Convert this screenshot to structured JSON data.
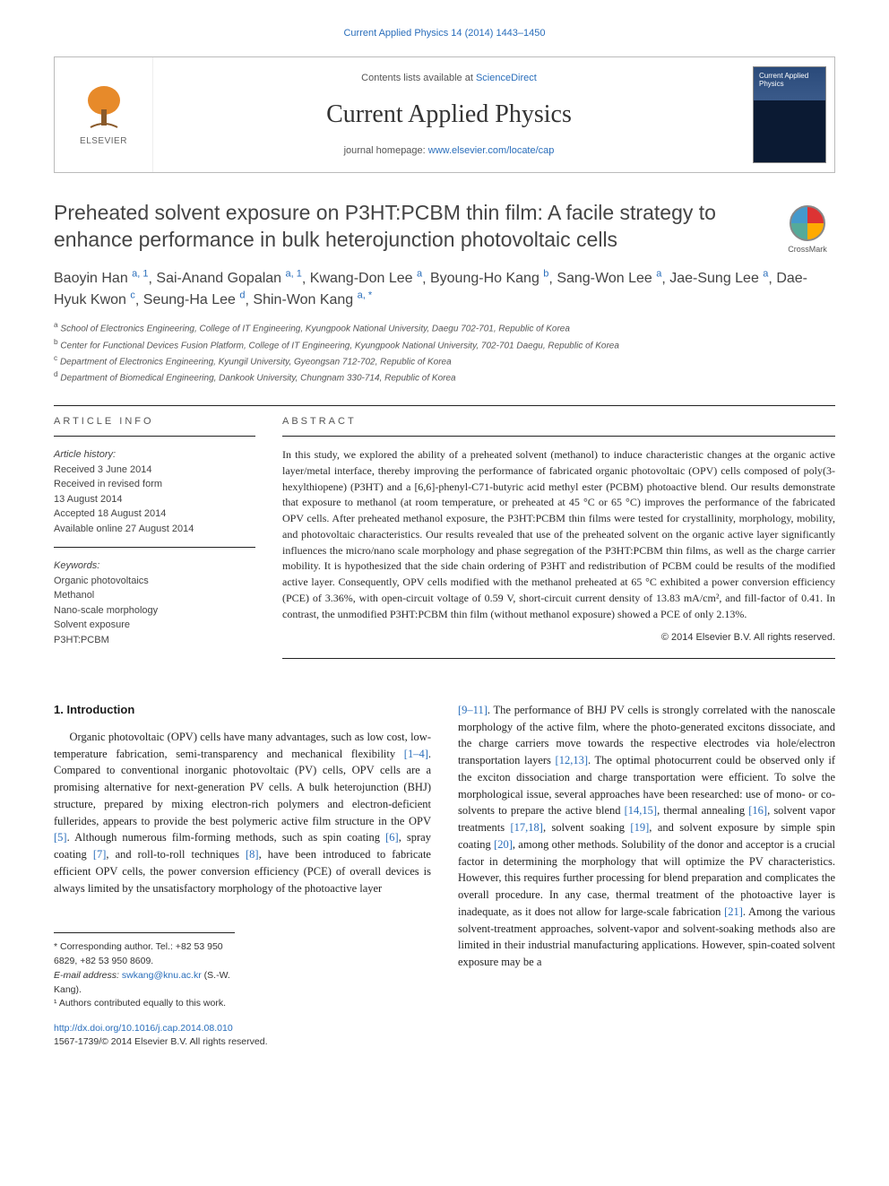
{
  "running_head": "Current Applied Physics 14 (2014) 1443–1450",
  "masthead": {
    "publisher": "ELSEVIER",
    "contents_prefix": "Contents lists available at ",
    "contents_link": "ScienceDirect",
    "journal": "Current Applied Physics",
    "homepage_prefix": "journal homepage: ",
    "homepage_link": "www.elsevier.com/locate/cap",
    "cover_caption": "Current Applied Physics"
  },
  "crossmark_label": "CrossMark",
  "title": "Preheated solvent exposure on P3HT:PCBM thin film: A facile strategy to enhance performance in bulk heterojunction photovoltaic cells",
  "authors": [
    {
      "name": "Baoyin Han",
      "marks": "a, 1"
    },
    {
      "name": "Sai-Anand Gopalan",
      "marks": "a, 1"
    },
    {
      "name": "Kwang-Don Lee",
      "marks": "a"
    },
    {
      "name": "Byoung-Ho Kang",
      "marks": "b"
    },
    {
      "name": "Sang-Won Lee",
      "marks": "a"
    },
    {
      "name": "Jae-Sung Lee",
      "marks": "a"
    },
    {
      "name": "Dae-Hyuk Kwon",
      "marks": "c"
    },
    {
      "name": "Seung-Ha Lee",
      "marks": "d"
    },
    {
      "name": "Shin-Won Kang",
      "marks": "a, *"
    }
  ],
  "affiliations": [
    {
      "key": "a",
      "text": "School of Electronics Engineering, College of IT Engineering, Kyungpook National University, Daegu 702-701, Republic of Korea"
    },
    {
      "key": "b",
      "text": "Center for Functional Devices Fusion Platform, College of IT Engineering, Kyungpook National University, 702-701 Daegu, Republic of Korea"
    },
    {
      "key": "c",
      "text": "Department of Electronics Engineering, Kyungil University, Gyeongsan 712-702, Republic of Korea"
    },
    {
      "key": "d",
      "text": "Department of Biomedical Engineering, Dankook University, Chungnam 330-714, Republic of Korea"
    }
  ],
  "article_info": {
    "head": "ARTICLE INFO",
    "history_head": "Article history:",
    "history": [
      "Received 3 June 2014",
      "Received in revised form",
      "13 August 2014",
      "Accepted 18 August 2014",
      "Available online 27 August 2014"
    ],
    "keywords_head": "Keywords:",
    "keywords": [
      "Organic photovoltaics",
      "Methanol",
      "Nano-scale morphology",
      "Solvent exposure",
      "P3HT:PCBM"
    ]
  },
  "abstract": {
    "head": "ABSTRACT",
    "text": "In this study, we explored the ability of a preheated solvent (methanol) to induce characteristic changes at the organic active layer/metal interface, thereby improving the performance of fabricated organic photovoltaic (OPV) cells composed of poly(3-hexylthiopene) (P3HT) and a [6,6]-phenyl-C71-butyric acid methyl ester (PCBM) photoactive blend. Our results demonstrate that exposure to methanol (at room temperature, or preheated at 45 °C or 65 °C) improves the performance of the fabricated OPV cells. After preheated methanol exposure, the P3HT:PCBM thin films were tested for crystallinity, morphology, mobility, and photovoltaic characteristics. Our results revealed that use of the preheated solvent on the organic active layer significantly influences the micro/nano scale morphology and phase segregation of the P3HT:PCBM thin films, as well as the charge carrier mobility. It is hypothesized that the side chain ordering of P3HT and redistribution of PCBM could be results of the modified active layer. Consequently, OPV cells modified with the methanol preheated at 65 °C exhibited a power conversion efficiency (PCE) of 3.36%, with open-circuit voltage of 0.59 V, short-circuit current density of 13.83 mA/cm², and fill-factor of 0.41. In contrast, the unmodified P3HT:PCBM thin film (without methanol exposure) showed a PCE of only 2.13%.",
    "copyright": "© 2014 Elsevier B.V. All rights reserved."
  },
  "intro": {
    "heading": "1.  Introduction",
    "col1": "Organic photovoltaic (OPV) cells have many advantages, such as low cost, low-temperature fabrication, semi-transparency and mechanical flexibility [1–4]. Compared to conventional inorganic photovoltaic (PV) cells, OPV cells are a promising alternative for next-generation PV cells. A bulk heterojunction (BHJ) structure, prepared by mixing electron-rich polymers and electron-deficient fullerides, appears to provide the best polymeric active film structure in the OPV [5]. Although numerous film-forming methods, such as spin coating [6], spray coating [7], and roll-to-roll techniques [8], have been introduced to fabricate efficient OPV cells, the power conversion efficiency (PCE) of overall devices is always limited by the unsatisfactory morphology of the photoactive layer",
    "col2": "[9–11]. The performance of BHJ PV cells is strongly correlated with the nanoscale morphology of the active film, where the photo-generated excitons dissociate, and the charge carriers move towards the respective electrodes via hole/electron transportation layers [12,13]. The optimal photocurrent could be observed only if the exciton dissociation and charge transportation were efficient. To solve the morphological issue, several approaches have been researched: use of mono- or co-solvents to prepare the active blend [14,15], thermal annealing [16], solvent vapor treatments [17,18], solvent soaking [19], and solvent exposure by simple spin coating [20], among other methods. Solubility of the donor and acceptor is a crucial factor in determining the morphology that will optimize the PV characteristics. However, this requires further processing for blend preparation and complicates the overall procedure. In any case, thermal treatment of the photoactive layer is inadequate, as it does not allow for large-scale fabrication [21]. Among the various solvent-treatment approaches, solvent-vapor and solvent-soaking methods also are limited in their industrial manufacturing applications. However, spin-coated solvent exposure may be a",
    "refs_col1": [
      "[1–4]",
      "[5]",
      "[6]",
      "[7]",
      "[8]"
    ],
    "refs_col2": [
      "[9–11]",
      "[12,13]",
      "[14,15]",
      "[16]",
      "[17,18]",
      "[19]",
      "[20]",
      "[21]"
    ]
  },
  "footnotes": {
    "corr": "* Corresponding author. Tel.: +82 53 950 6829, +82 53 950 8609.",
    "email_label": "E-mail address: ",
    "email": "swkang@knu.ac.kr",
    "email_tail": " (S.-W. Kang).",
    "equal": "¹ Authors contributed equally to this work."
  },
  "doi": {
    "link": "http://dx.doi.org/10.1016/j.cap.2014.08.010",
    "issn": "1567-1739/© 2014 Elsevier B.V. All rights reserved."
  },
  "colors": {
    "link": "#2a6ebb",
    "text": "#222222",
    "rule": "#222222"
  }
}
